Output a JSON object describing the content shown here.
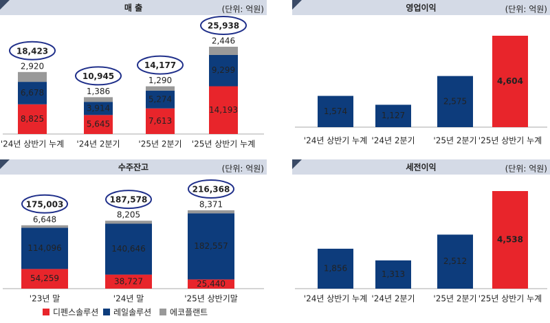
{
  "chart_data": [
    {
      "type": "stacked_bar",
      "title": "매 출",
      "unit": "(단위: 억원)",
      "categories": [
        "'24년 상반기 누계",
        "'24년 2분기",
        "'25년 2분기",
        "'25년 상반기 누계"
      ],
      "series": [
        {
          "name": "디펜스솔루션",
          "color": "#e8252b",
          "values": [
            8825,
            5645,
            7613,
            14193
          ],
          "value_labels": [
            "8,825",
            "5,645",
            "7,613",
            "14,193"
          ]
        },
        {
          "name": "레일솔루션",
          "color": "#0d3c7c",
          "values": [
            6678,
            3914,
            5274,
            9299
          ],
          "value_labels": [
            "6,678",
            "3,914",
            "5,274",
            "9,299"
          ]
        },
        {
          "name": "에코플랜트",
          "color": "#999999",
          "values": [
            2920,
            1386,
            1290,
            2446
          ],
          "value_labels": [
            "2,920",
            "1,386",
            "1,290",
            "2,446"
          ]
        }
      ],
      "totals": [
        18423,
        10945,
        14177,
        25938
      ],
      "total_labels": [
        "18,423",
        "10,945",
        "14,177",
        "25,938"
      ]
    },
    {
      "type": "bar",
      "title": "영업이익",
      "unit": "(단위: 억원)",
      "categories": [
        "'24년 상반기 누계",
        "'24년 2분기",
        "'25년 2분기",
        "'25년 상반기 누계"
      ],
      "values": [
        1574,
        1127,
        2575,
        4604
      ],
      "value_labels": [
        "1,574",
        "1,127",
        "2,575",
        "4,604"
      ],
      "colors": [
        "#0d3c7c",
        "#0d3c7c",
        "#0d3c7c",
        "#e8252b"
      ]
    },
    {
      "type": "stacked_bar",
      "title": "수주잔고",
      "unit": "(단위: 억원)",
      "categories": [
        "'23년 말",
        "'24년 말",
        "'25년 상반기말"
      ],
      "series": [
        {
          "name": "디펜스솔루션",
          "color": "#e8252b",
          "values": [
            54259,
            38727,
            25440
          ],
          "value_labels": [
            "54,259",
            "38,727",
            "25,440"
          ]
        },
        {
          "name": "레일솔루션",
          "color": "#0d3c7c",
          "values": [
            114096,
            140646,
            182557
          ],
          "value_labels": [
            "114,096",
            "140,646",
            "182,557"
          ]
        },
        {
          "name": "에코플랜트",
          "color": "#999999",
          "values": [
            6648,
            8205,
            8371
          ],
          "value_labels": [
            "6,648",
            "8,205",
            "8,371"
          ]
        }
      ],
      "totals": [
        175003,
        187578,
        216368
      ],
      "total_labels": [
        "175,003",
        "187,578",
        "216,368"
      ]
    },
    {
      "type": "bar",
      "title": "세전이익",
      "unit": "(단위: 억원)",
      "categories": [
        "'24년 상반기 누계",
        "'24년 2분기",
        "'25년 2분기",
        "'25년 상반기 누계"
      ],
      "values": [
        1856,
        1313,
        2512,
        4538
      ],
      "value_labels": [
        "1,856",
        "1,313",
        "2,512",
        "4,538"
      ],
      "colors": [
        "#0d3c7c",
        "#0d3c7c",
        "#0d3c7c",
        "#e8252b"
      ]
    }
  ]
}
